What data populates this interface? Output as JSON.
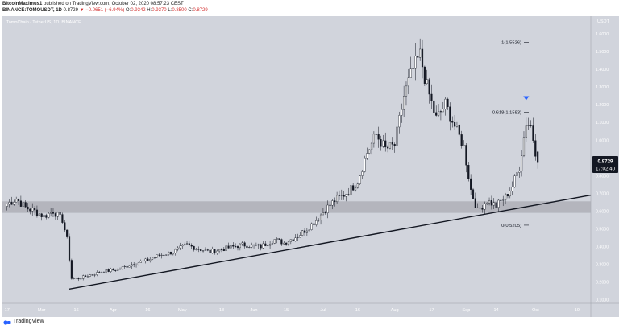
{
  "header": {
    "author": "BitcoinMaximus1",
    "published": "published on TradingView.com, October 02, 2020 08:57:23 CEST",
    "symbol": "BINANCE:TOMOUSDT, 1D",
    "last": "0.8729",
    "change": "▼ −0.0651 (−6.94%)",
    "o_label": "O:",
    "o_value": "0.9342",
    "h_label": "H:",
    "h_value": "0.9370",
    "l_label": "L:",
    "l_value": "0.8500",
    "c_label": "C:",
    "c_value": "0.8729"
  },
  "footer": {
    "brand": "TradingView"
  },
  "colors": {
    "background": "#d1d4dc",
    "candle_up": "#ffffff",
    "candle_down": "#131722",
    "support_zone": "#a9abb3",
    "trendline": "#131722",
    "price_badge": "#131722",
    "marker": "#2962ff"
  },
  "chart_data": {
    "type": "candlestick",
    "title": "TomoChain / TetherUS, 1D, BINANCE",
    "currency": "USDT",
    "ylim": [
      0.08,
      1.7
    ],
    "y_ticks": [
      "1.6000",
      "1.5000",
      "1.4000",
      "1.3000",
      "1.2000",
      "1.1000",
      "1.0000",
      "0.9000",
      "0.8000",
      "0.7000",
      "0.6000",
      "0.5000",
      "0.4000",
      "0.3000",
      "0.2000",
      "0.1000"
    ],
    "x_ticks": [
      {
        "label": "17",
        "day": 0
      },
      {
        "label": "Mar",
        "day": 15
      },
      {
        "label": "16",
        "day": 30
      },
      {
        "label": "Apr",
        "day": 46
      },
      {
        "label": "16",
        "day": 61
      },
      {
        "label": "May",
        "day": 76
      },
      {
        "label": "18",
        "day": 93
      },
      {
        "label": "Jun",
        "day": 107
      },
      {
        "label": "15",
        "day": 121
      },
      {
        "label": "Jul",
        "day": 137
      },
      {
        "label": "16",
        "day": 152
      },
      {
        "label": "Aug",
        "day": 168
      },
      {
        "label": "17",
        "day": 184
      },
      {
        "label": "Sep",
        "day": 199
      },
      {
        "label": "14",
        "day": 212
      },
      {
        "label": "Oct",
        "day": 229
      },
      {
        "label": "19",
        "day": 247
      }
    ],
    "x_range": [
      -2,
      253
    ],
    "current_price": "0.8729",
    "countdown": "17:02:40",
    "fib_levels": [
      {
        "label": "1(1.5526)",
        "value": 1.5526
      },
      {
        "label": "0.618(1.1583)",
        "value": 1.1583
      },
      {
        "label": "0(0.5205)",
        "value": 0.5205
      }
    ],
    "support_zone": [
      0.59,
      0.655
    ],
    "trendline": [
      {
        "day": 27,
        "price": 0.16
      },
      {
        "day": 253,
        "price": 0.69
      }
    ],
    "marker": {
      "day": 225,
      "price": 1.235
    },
    "anchors": [
      [
        0,
        0.64
      ],
      [
        4,
        0.67
      ],
      [
        8,
        0.62
      ],
      [
        12,
        0.6
      ],
      [
        16,
        0.57
      ],
      [
        20,
        0.6
      ],
      [
        24,
        0.55
      ],
      [
        26,
        0.44
      ],
      [
        28,
        0.22
      ],
      [
        31,
        0.22
      ],
      [
        36,
        0.24
      ],
      [
        42,
        0.26
      ],
      [
        48,
        0.27
      ],
      [
        54,
        0.3
      ],
      [
        60,
        0.32
      ],
      [
        66,
        0.35
      ],
      [
        72,
        0.37
      ],
      [
        78,
        0.41
      ],
      [
        82,
        0.39
      ],
      [
        88,
        0.37
      ],
      [
        95,
        0.39
      ],
      [
        102,
        0.41
      ],
      [
        110,
        0.4
      ],
      [
        116,
        0.44
      ],
      [
        120,
        0.42
      ],
      [
        126,
        0.46
      ],
      [
        130,
        0.5
      ],
      [
        134,
        0.55
      ],
      [
        138,
        0.61
      ],
      [
        142,
        0.66
      ],
      [
        148,
        0.71
      ],
      [
        152,
        0.77
      ],
      [
        156,
        0.93
      ],
      [
        160,
        1.03
      ],
      [
        164,
        0.95
      ],
      [
        168,
        0.97
      ],
      [
        172,
        1.25
      ],
      [
        176,
        1.4
      ],
      [
        179,
        1.48
      ],
      [
        182,
        1.3
      ],
      [
        186,
        1.12
      ],
      [
        190,
        1.2
      ],
      [
        194,
        1.08
      ],
      [
        198,
        0.96
      ],
      [
        201,
        0.72
      ],
      [
        204,
        0.6
      ],
      [
        208,
        0.66
      ],
      [
        212,
        0.63
      ],
      [
        216,
        0.68
      ],
      [
        219,
        0.74
      ],
      [
        222,
        0.85
      ],
      [
        225,
        1.1
      ],
      [
        227,
        1.08
      ],
      [
        229,
        0.94
      ],
      [
        230,
        0.8729
      ]
    ]
  }
}
